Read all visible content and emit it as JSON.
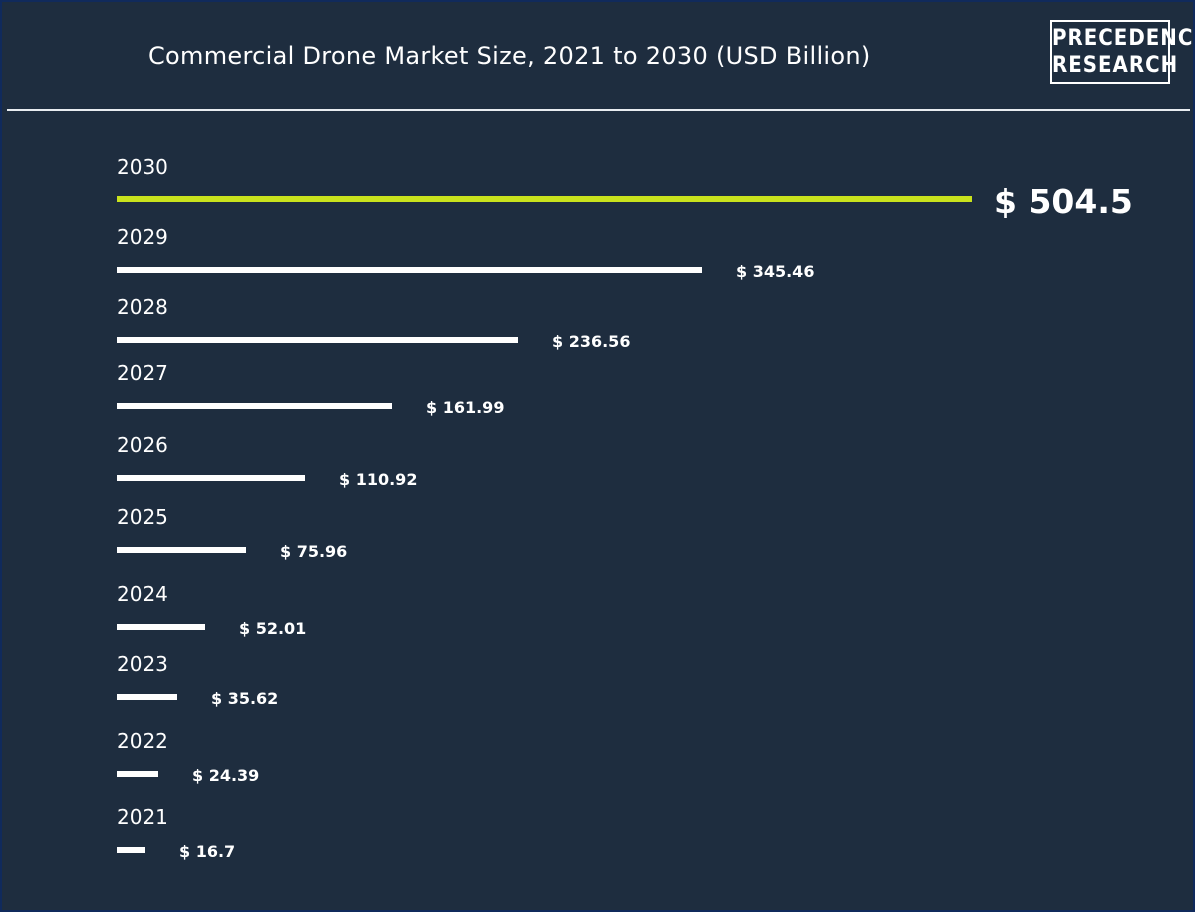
{
  "header": {
    "title": "Commercial Drone Market Size, 2021 to 2030 (USD Billion)",
    "logo_line1": "PRECEDENCE",
    "logo_line2": "RESEARCH"
  },
  "colors": {
    "background": "#1e2d3f",
    "bar": "#ffffff",
    "highlight_bar": "#c9e21d",
    "text": "#ffffff"
  },
  "chart_data": {
    "type": "bar",
    "orientation": "horizontal",
    "title": "Commercial Drone Market Size, 2021 to 2030 (USD Billion)",
    "categories": [
      "2030",
      "2029",
      "2028",
      "2027",
      "2026",
      "2025",
      "2024",
      "2023",
      "2022",
      "2021"
    ],
    "values": [
      504.5,
      345.46,
      236.56,
      161.99,
      110.92,
      75.96,
      52.01,
      35.62,
      24.39,
      16.7
    ],
    "value_labels": [
      "$ 504.5",
      "$ 345.46",
      "$ 236.56",
      "$ 161.99",
      "$ 110.92",
      "$ 75.96",
      "$ 52.01",
      "$ 35.62",
      "$ 24.39",
      "$ 16.7"
    ],
    "highlight_category": "2030",
    "xlabel": "",
    "ylabel": "",
    "grid": false,
    "legend": "none"
  }
}
